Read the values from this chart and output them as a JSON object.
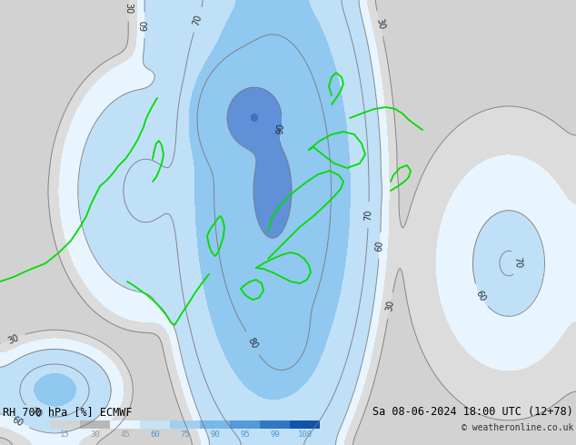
{
  "title_left": "RH 700 hPa [%] ECMWF",
  "title_right": "Sa 08-06-2024 18:00 UTC (12+78)",
  "copyright": "© weatheronline.co.uk",
  "legend_values": [
    15,
    30,
    45,
    60,
    75,
    90,
    95,
    99,
    100
  ],
  "legend_colors": [
    "#d4d4d4",
    "#b8b8b8",
    "#e8f4ff",
    "#c5e3f5",
    "#a0d0f0",
    "#78b8e8",
    "#5599d8",
    "#3377c0",
    "#1155a8"
  ],
  "background_color": "#b0b0b0",
  "figsize": [
    6.34,
    4.9
  ],
  "dpi": 100,
  "bounds": [
    0,
    15,
    30,
    45,
    60,
    75,
    90,
    95,
    99,
    100,
    101
  ],
  "cmap_colors": [
    "#c8c8c8",
    "#d2d2d2",
    "#dcdcdc",
    "#e8f5ff",
    "#c0e0f8",
    "#90c8f0",
    "#6090d8",
    "#4070c0",
    "#2050a8",
    "#103888"
  ]
}
